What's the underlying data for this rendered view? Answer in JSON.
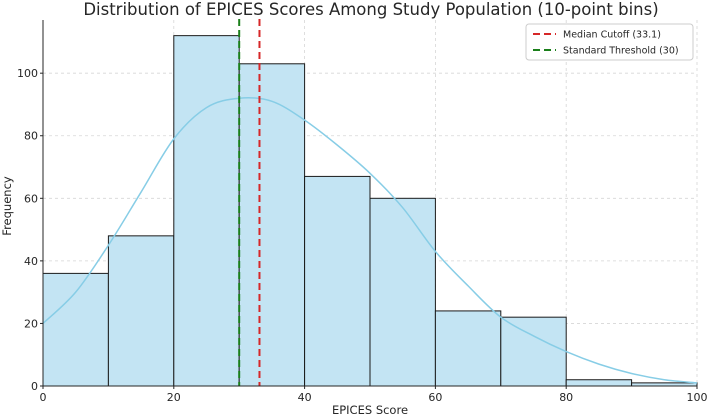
{
  "chart_data": {
    "type": "histogram",
    "title": "Distribution of EPICES Scores Among Study Population (10-point bins)",
    "xlabel": "EPICES Score",
    "ylabel": "Frequency",
    "xlim": [
      0,
      100
    ],
    "ylim": [
      0,
      117
    ],
    "x_ticks": [
      0,
      20,
      40,
      60,
      80,
      100
    ],
    "y_ticks": [
      0,
      20,
      40,
      60,
      80,
      100
    ],
    "grid": true,
    "bins": [
      {
        "start": 0,
        "end": 10,
        "count": 36
      },
      {
        "start": 10,
        "end": 20,
        "count": 48
      },
      {
        "start": 20,
        "end": 30,
        "count": 112
      },
      {
        "start": 30,
        "end": 40,
        "count": 103
      },
      {
        "start": 40,
        "end": 50,
        "count": 67
      },
      {
        "start": 50,
        "end": 60,
        "count": 60
      },
      {
        "start": 60,
        "end": 70,
        "count": 24
      },
      {
        "start": 70,
        "end": 80,
        "count": 22
      },
      {
        "start": 80,
        "end": 90,
        "count": 2
      },
      {
        "start": 90,
        "end": 100,
        "count": 1
      }
    ],
    "kde": {
      "x": [
        0,
        5,
        10,
        15,
        20,
        25,
        30,
        35,
        40,
        45,
        50,
        55,
        60,
        65,
        70,
        75,
        80,
        85,
        90,
        95,
        100
      ],
      "y": [
        20,
        30,
        45,
        62,
        79,
        89,
        92,
        91,
        85,
        77,
        68,
        57,
        43,
        32,
        22,
        16,
        11,
        7,
        4,
        2,
        1
      ]
    },
    "reference_lines": [
      {
        "name": "Median Cutoff (33.1)",
        "x": 33.1,
        "color": "#d62728",
        "style": "dashed"
      },
      {
        "name": "Standard Threshold (30)",
        "x": 30,
        "color": "#1a7f1a",
        "style": "dashed"
      }
    ],
    "legend_position": "top-right",
    "colors": {
      "bar_fill": "#c3e4f3",
      "bar_edge": "#1a1a1a",
      "kde_line": "#87cde6",
      "grid": "#d6d6d6"
    }
  }
}
